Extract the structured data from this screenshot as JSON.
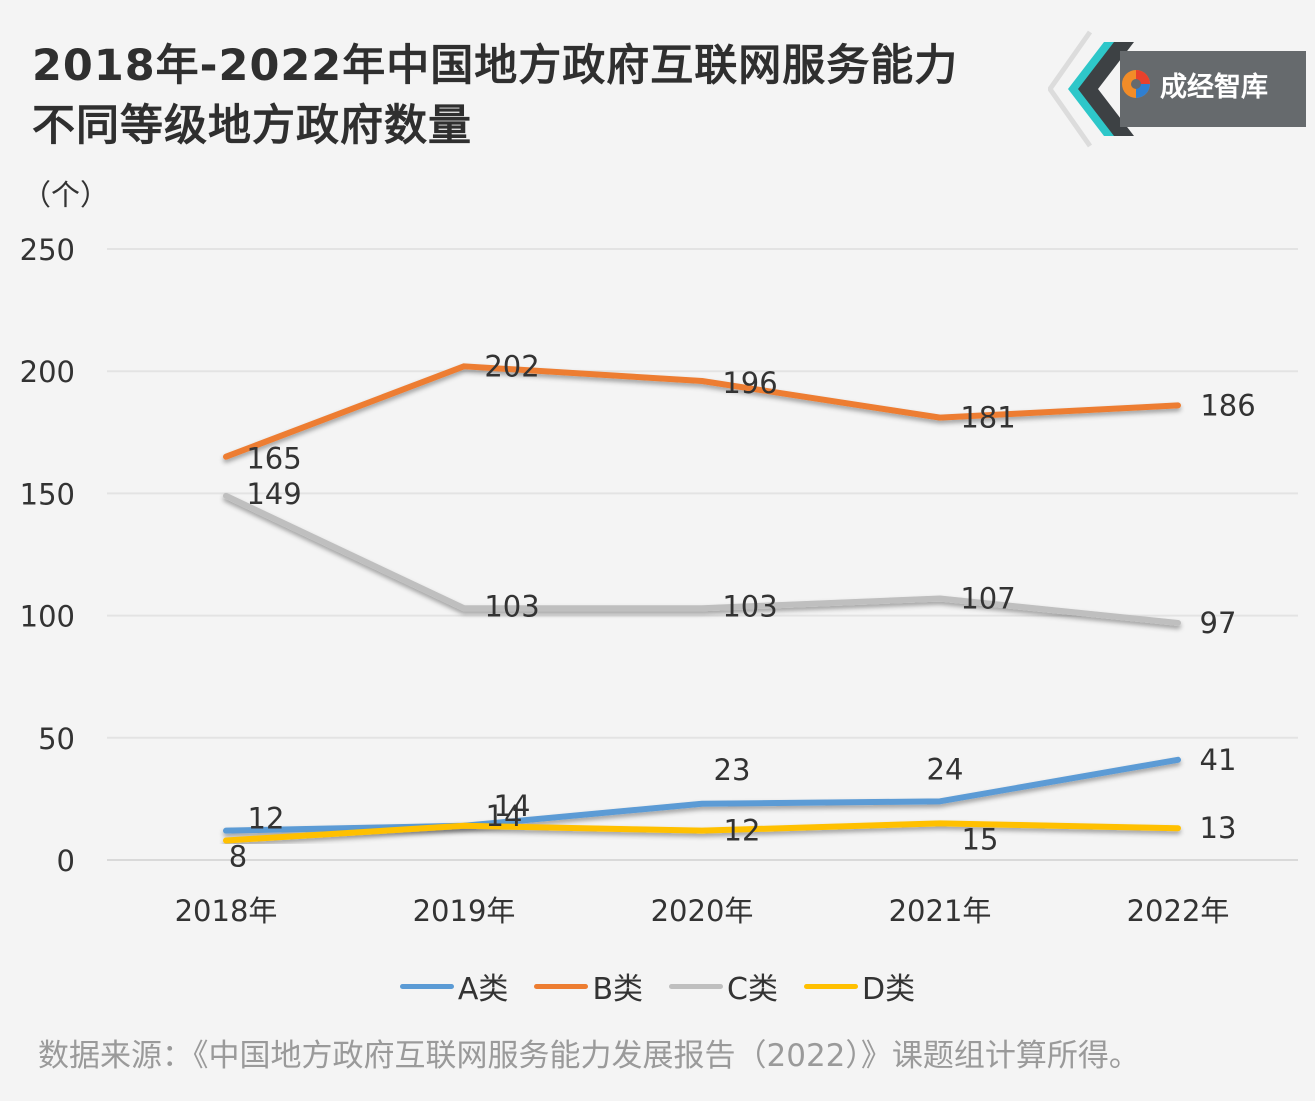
{
  "title": {
    "line1": "2018年-2022年中国地方政府互联网服务能力",
    "line2": "不同等级地方政府数量"
  },
  "logo": {
    "text": "成经智库",
    "icon": "swirl-logo-icon"
  },
  "source": "数据来源：《中国地方政府互联网服务能力发展报告（2022）》课题组计算所得。",
  "chart_data": {
    "type": "line",
    "unit_label": "（个）",
    "categories": [
      "2018年",
      "2019年",
      "2020年",
      "2021年",
      "2022年"
    ],
    "ylim": [
      0,
      250
    ],
    "yticks": [
      "0",
      "50",
      "100",
      "150",
      "200",
      "250"
    ],
    "grid": true,
    "legend_position": "bottom",
    "series": [
      {
        "name": "A类",
        "color": "#5b9bd5",
        "values": [
          12,
          14,
          23,
          24,
          41
        ]
      },
      {
        "name": "B类",
        "color": "#ed7d31",
        "values": [
          165,
          202,
          196,
          181,
          186
        ]
      },
      {
        "name": "C类",
        "color": "#bfbfbf",
        "values": [
          149,
          103,
          103,
          107,
          97
        ]
      },
      {
        "name": "D类",
        "color": "#ffc000",
        "values": [
          8,
          14,
          12,
          15,
          13
        ]
      }
    ]
  }
}
